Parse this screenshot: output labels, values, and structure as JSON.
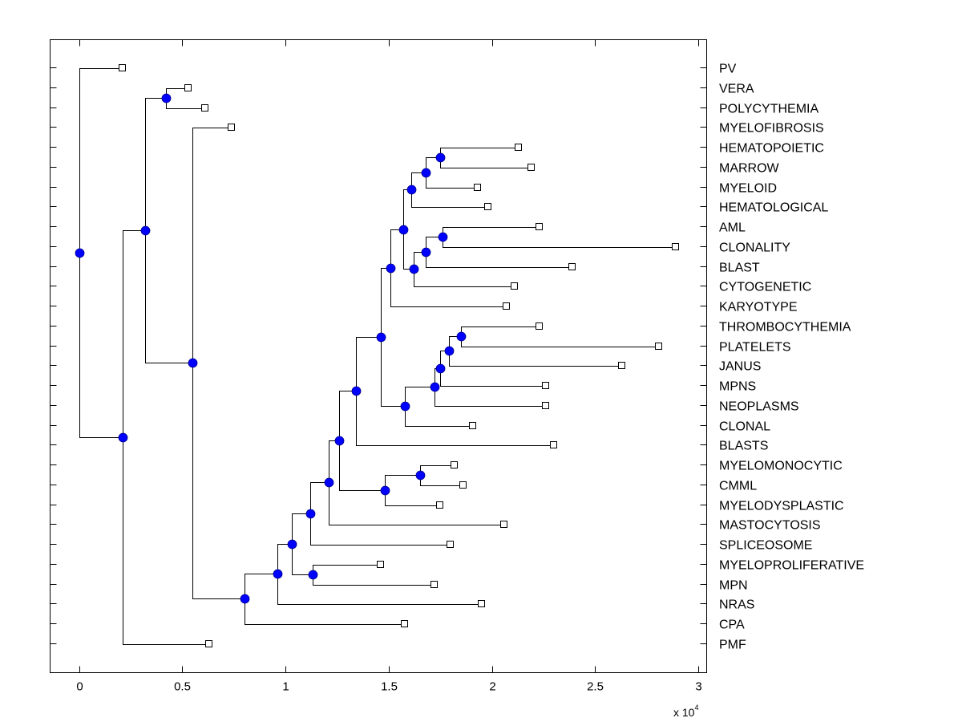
{
  "chart_data": {
    "type": "dendrogram",
    "title": "",
    "xlabel": "",
    "ylabel": "",
    "x_multiplier_label": "x 10",
    "x_multiplier_exponent": "4",
    "xlim": [
      -0.14,
      3.04
    ],
    "xticks": [
      0,
      0.5,
      1,
      1.5,
      2,
      2.5,
      3
    ],
    "xtick_labels": [
      "0",
      "0.5",
      "1",
      "1.5",
      "2",
      "2.5",
      "3"
    ],
    "grid": false,
    "colors": {
      "internal_node": "#0000ff",
      "leaf_marker": "#ffffff",
      "lines": "#000000"
    },
    "leaves": [
      {
        "id": "PV",
        "label": "PV",
        "x": 0.21
      },
      {
        "id": "VERA",
        "label": "VERA",
        "x": 0.53
      },
      {
        "id": "POLYCYTHEMIA",
        "label": "POLYCYTHEMIA",
        "x": 0.61
      },
      {
        "id": "MYELOFIBROSIS",
        "label": "MYELOFIBROSIS",
        "x": 0.74
      },
      {
        "id": "HEMATOPOIETIC",
        "label": "HEMATOPOIETIC",
        "x": 2.13
      },
      {
        "id": "MARROW",
        "label": "MARROW",
        "x": 2.19
      },
      {
        "id": "MYELOID",
        "label": "MYELOID",
        "x": 1.93
      },
      {
        "id": "HEMATOLOGICAL",
        "label": "HEMATOLOGICAL",
        "x": 1.98
      },
      {
        "id": "AML",
        "label": "AML",
        "x": 2.23
      },
      {
        "id": "CLONALITY",
        "label": "CLONALITY",
        "x": 2.89
      },
      {
        "id": "BLAST",
        "label": "BLAST",
        "x": 2.39
      },
      {
        "id": "CYTOGENETIC",
        "label": "CYTOGENETIC",
        "x": 2.11
      },
      {
        "id": "KARYOTYPE",
        "label": "KARYOTYPE",
        "x": 2.07
      },
      {
        "id": "THROMBOCYTHEMIA",
        "label": "THROMBOCYTHEMIA",
        "x": 2.23
      },
      {
        "id": "PLATELETS",
        "label": "PLATELETS",
        "x": 2.81
      },
      {
        "id": "JANUS",
        "label": "JANUS",
        "x": 2.63
      },
      {
        "id": "MPNS",
        "label": "MPNS",
        "x": 2.26
      },
      {
        "id": "NEOPLASMS",
        "label": "NEOPLASMS",
        "x": 2.26
      },
      {
        "id": "CLONAL",
        "label": "CLONAL",
        "x": 1.91
      },
      {
        "id": "BLASTS",
        "label": "BLASTS",
        "x": 2.3
      },
      {
        "id": "MYELOMONOCYTIC",
        "label": "MYELOMONOCYTIC",
        "x": 1.82
      },
      {
        "id": "CMML",
        "label": "CMML",
        "x": 1.86
      },
      {
        "id": "MYELODYSPLASTIC",
        "label": "MYELODYSPLASTIC",
        "x": 1.75
      },
      {
        "id": "MASTOCYTOSIS",
        "label": "MASTOCYTOSIS",
        "x": 2.06
      },
      {
        "id": "SPLICEOSOME",
        "label": "SPLICEOSOME",
        "x": 1.8
      },
      {
        "id": "MYELOPROLIFERATIVE",
        "label": "MYELOPROLIFERATIVE",
        "x": 1.46
      },
      {
        "id": "MPN",
        "label": "MPN",
        "x": 1.72
      },
      {
        "id": "NRAS",
        "label": "NRAS",
        "x": 1.95
      },
      {
        "id": "CPA",
        "label": "CPA",
        "x": 1.58
      },
      {
        "id": "PMF",
        "label": "PMF",
        "x": 0.63
      }
    ],
    "internal_nodes": [
      {
        "id": "n_vp",
        "x": 0.42,
        "children": [
          "VERA",
          "POLYCYTHEMIA"
        ]
      },
      {
        "id": "n_a",
        "x": 1.75,
        "children": [
          "HEMATOPOIETIC",
          "MARROW"
        ]
      },
      {
        "id": "n_b",
        "x": 1.68,
        "children": [
          "n_a",
          "MYELOID"
        ]
      },
      {
        "id": "n_c",
        "x": 1.61,
        "children": [
          "n_b",
          "HEMATOLOGICAL"
        ]
      },
      {
        "id": "n_d",
        "x": 1.76,
        "children": [
          "AML",
          "CLONALITY"
        ]
      },
      {
        "id": "n_e",
        "x": 1.68,
        "children": [
          "n_d",
          "BLAST"
        ]
      },
      {
        "id": "n_f",
        "x": 1.62,
        "children": [
          "n_e",
          "CYTOGENETIC"
        ]
      },
      {
        "id": "n_g",
        "x": 1.57,
        "children": [
          "n_c",
          "n_f"
        ]
      },
      {
        "id": "n_h",
        "x": 1.51,
        "children": [
          "n_g",
          "KARYOTYPE"
        ]
      },
      {
        "id": "n_i",
        "x": 1.85,
        "children": [
          "THROMBOCYTHEMIA",
          "PLATELETS"
        ]
      },
      {
        "id": "n_j",
        "x": 1.79,
        "children": [
          "n_i",
          "JANUS"
        ]
      },
      {
        "id": "n_k",
        "x": 1.75,
        "children": [
          "n_j",
          "MPNS"
        ]
      },
      {
        "id": "n_l",
        "x": 1.72,
        "children": [
          "n_k",
          "NEOPLASMS"
        ]
      },
      {
        "id": "n_m",
        "x": 1.58,
        "children": [
          "n_l",
          "CLONAL"
        ]
      },
      {
        "id": "n_n",
        "x": 1.46,
        "children": [
          "n_h",
          "n_m"
        ]
      },
      {
        "id": "n_o",
        "x": 1.34,
        "children": [
          "n_n",
          "BLASTS"
        ]
      },
      {
        "id": "n_r",
        "x": 1.65,
        "children": [
          "MYELOMONOCYTIC",
          "CMML"
        ]
      },
      {
        "id": "n_q",
        "x": 1.48,
        "children": [
          "n_r",
          "MYELODYSPLASTIC"
        ]
      },
      {
        "id": "n_p",
        "x": 1.26,
        "children": [
          "n_o",
          "n_q"
        ]
      },
      {
        "id": "n_s",
        "x": 1.21,
        "children": [
          "n_p",
          "MASTOCYTOSIS"
        ]
      },
      {
        "id": "n_t",
        "x": 1.12,
        "children": [
          "n_s",
          "SPLICEOSOME"
        ]
      },
      {
        "id": "n_v",
        "x": 1.13,
        "children": [
          "MYELOPROLIFERATIVE",
          "MPN"
        ]
      },
      {
        "id": "n_u",
        "x": 1.03,
        "children": [
          "n_t",
          "n_v"
        ]
      },
      {
        "id": "n_w",
        "x": 0.96,
        "children": [
          "n_u",
          "NRAS"
        ]
      },
      {
        "id": "n_x",
        "x": 0.8,
        "children": [
          "n_w",
          "CPA"
        ]
      },
      {
        "id": "n_y",
        "x": 0.55,
        "children": [
          "MYELOFIBROSIS",
          "n_x"
        ]
      },
      {
        "id": "n_aa",
        "x": 0.32,
        "children": [
          "n_vp",
          "n_y"
        ]
      },
      {
        "id": "n_z",
        "x": 0.21,
        "children": [
          "n_aa",
          "PMF"
        ]
      },
      {
        "id": "root",
        "x": 0.0,
        "children": [
          "PV",
          "n_z"
        ]
      }
    ]
  }
}
